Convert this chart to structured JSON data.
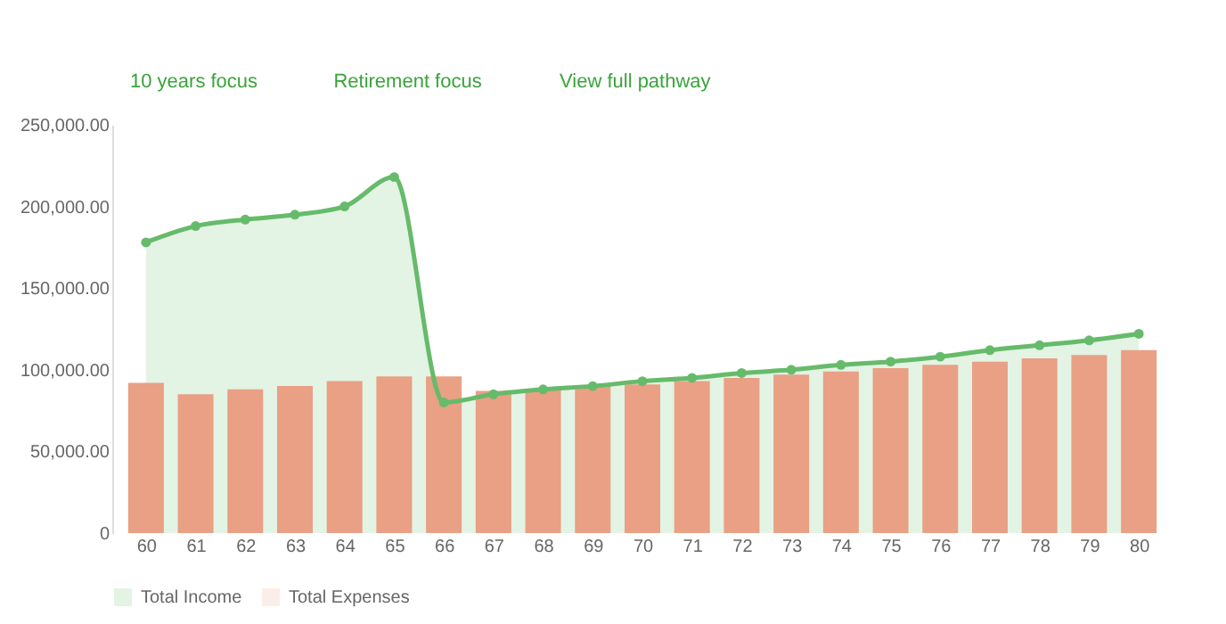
{
  "chart_data": {
    "type": "bar",
    "annotations": [
      "10 years focus",
      "Retirement focus",
      "View full pathway"
    ],
    "categories": [
      "60",
      "61",
      "62",
      "63",
      "64",
      "65",
      "66",
      "67",
      "68",
      "69",
      "70",
      "71",
      "72",
      "73",
      "74",
      "75",
      "76",
      "77",
      "78",
      "79",
      "80"
    ],
    "series": [
      {
        "name": "Total Income",
        "type": "area",
        "color": "#66bb6a",
        "marker": "circle",
        "line_style": "solid",
        "values": [
          178000,
          188000,
          192000,
          195000,
          200000,
          218000,
          80000,
          85000,
          88000,
          90000,
          93000,
          95000,
          98000,
          100000,
          103000,
          105000,
          108000,
          112000,
          115000,
          118000,
          122000
        ]
      },
      {
        "name": "Total Expenses",
        "color": "#e9a085",
        "values": [
          92000,
          85000,
          88000,
          90000,
          93000,
          96000,
          96000,
          87000,
          88000,
          90000,
          91000,
          93000,
          95000,
          97000,
          99000,
          101000,
          103000,
          105000,
          107000,
          109000,
          112000
        ]
      }
    ],
    "ylim": [
      0,
      250000
    ],
    "yticks": [
      {
        "value": 0,
        "label": "0"
      },
      {
        "value": 50000,
        "label": "50,000.00"
      },
      {
        "value": 100000,
        "label": "100,000.00"
      },
      {
        "value": 150000,
        "label": "150,000.00"
      },
      {
        "value": 200000,
        "label": "200,000.00"
      },
      {
        "value": 250000,
        "label": "250,000.00"
      }
    ],
    "grid": false,
    "legend": "bottom"
  }
}
